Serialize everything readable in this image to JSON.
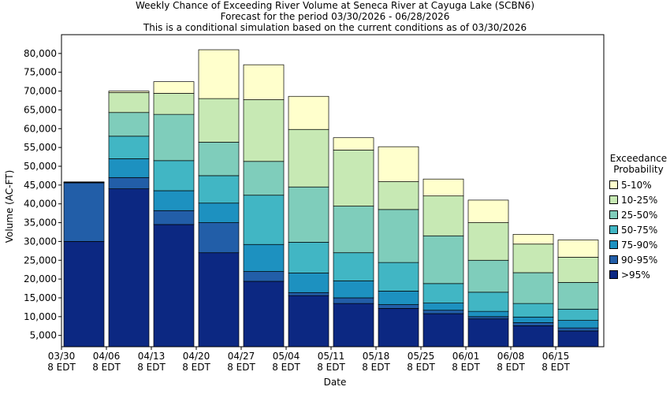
{
  "header": {
    "title": "Weekly Chance of Exceeding River Volume at Seneca River at Cayuga Lake (SCBN6)",
    "subtitle1": "Forecast for the period 03/30/2026 - 06/28/2026",
    "subtitle2": "This is a conditional simulation based on the current conditions as of 03/30/2026"
  },
  "chart_data": {
    "type": "bar",
    "stacked": true,
    "title": "Weekly Chance of Exceeding River Volume at Seneca River at Cayuga Lake (SCBN6)",
    "xlabel": "Date",
    "ylabel": "Volume (AC-FT)",
    "ylim": [
      2000,
      85000
    ],
    "yticks": [
      5000,
      10000,
      15000,
      20000,
      25000,
      30000,
      35000,
      40000,
      45000,
      50000,
      55000,
      60000,
      65000,
      70000,
      75000,
      80000
    ],
    "ytick_labels": [
      "5,000",
      "10,000",
      "15,000",
      "20,000",
      "25,000",
      "30,000",
      "35,000",
      "40,000",
      "45,000",
      "50,000",
      "55,000",
      "60,000",
      "65,000",
      "70,000",
      "75,000",
      "80,000"
    ],
    "xtick_labels": [
      [
        "03/30",
        "8 EDT"
      ],
      [
        "04/06",
        "8 EDT"
      ],
      [
        "04/13",
        "8 EDT"
      ],
      [
        "04/20",
        "8 EDT"
      ],
      [
        "04/27",
        "8 EDT"
      ],
      [
        "05/04",
        "8 EDT"
      ],
      [
        "05/11",
        "8 EDT"
      ],
      [
        "05/18",
        "8 EDT"
      ],
      [
        "05/25",
        "8 EDT"
      ],
      [
        "06/01",
        "8 EDT"
      ],
      [
        "06/08",
        "8 EDT"
      ],
      [
        "06/15",
        "8 EDT"
      ]
    ],
    "grid": false,
    "legend_title": [
      "Exceedance",
      "Probability"
    ],
    "legend_placement": "right",
    "series": [
      {
        "name": ">95%",
        "color": "#0c2882"
      },
      {
        "name": "90-95%",
        "color": "#225ea8"
      },
      {
        "name": "75-90%",
        "color": "#1d91c0"
      },
      {
        "name": "50-75%",
        "color": "#41b6c4"
      },
      {
        "name": "25-50%",
        "color": "#7fcdbb"
      },
      {
        "name": "10-25%",
        "color": "#c7e9b4"
      },
      {
        "name": "5-10%",
        "color": "#ffffcc"
      }
    ],
    "bars": [
      [
        30000,
        45600,
        45650,
        45700,
        45750,
        45800,
        45850
      ],
      [
        44000,
        47000,
        52000,
        58000,
        64300,
        69600,
        70000
      ],
      [
        34500,
        38200,
        43500,
        51500,
        63800,
        69400,
        72500
      ],
      [
        27000,
        35000,
        40200,
        47500,
        56400,
        68000,
        81000
      ],
      [
        19400,
        22000,
        29200,
        42300,
        51300,
        67700,
        77000
      ],
      [
        15600,
        16400,
        21600,
        29800,
        44500,
        59800,
        68600
      ],
      [
        13500,
        15000,
        19500,
        27000,
        39400,
        54300,
        57600
      ],
      [
        12200,
        13200,
        16800,
        24400,
        38500,
        45900,
        55200
      ],
      [
        10800,
        11700,
        13600,
        18800,
        31500,
        42100,
        46600
      ],
      [
        9400,
        10000,
        11400,
        16500,
        25000,
        35000,
        41000
      ],
      [
        7600,
        8400,
        9900,
        13500,
        21700,
        29300,
        31900
      ],
      [
        6200,
        7000,
        9000,
        12000,
        19100,
        25800,
        30400
      ]
    ]
  }
}
